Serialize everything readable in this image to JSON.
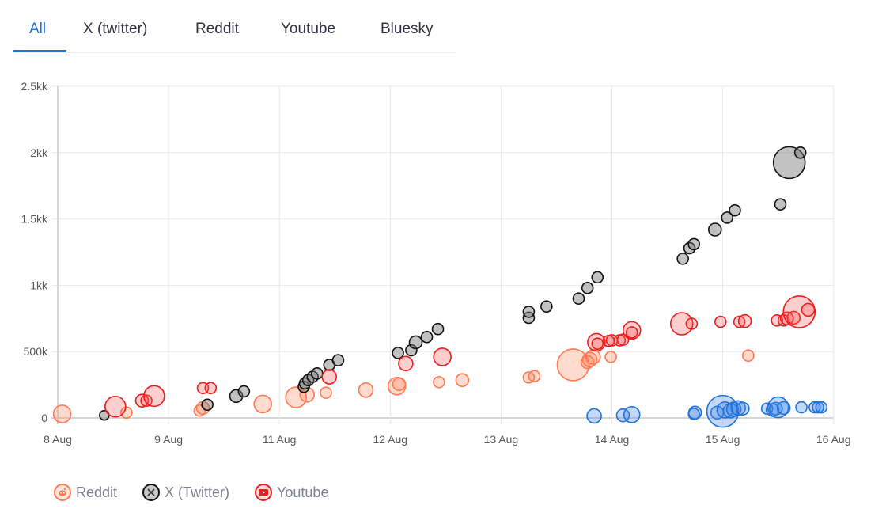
{
  "tabs": [
    {
      "label": "All",
      "active": true
    },
    {
      "label": "X (twitter)",
      "active": false
    },
    {
      "label": "Reddit",
      "active": false
    },
    {
      "label": "Youtube",
      "active": false
    },
    {
      "label": "Bluesky",
      "active": false
    }
  ],
  "legend": [
    {
      "label": "Reddit",
      "icon": "reddit-icon",
      "color": "#ff7a50"
    },
    {
      "label": "X (Twitter)",
      "icon": "x-icon",
      "color": "#111111"
    },
    {
      "label": "Youtube",
      "icon": "youtube-icon",
      "color": "#ee1c1c"
    }
  ],
  "chart_data": {
    "type": "scatter",
    "subtype": "bubble",
    "title": "",
    "xlabel": "",
    "ylabel": "",
    "x_ticks": [
      "8 Aug",
      "9 Aug",
      "11 Aug",
      "12 Aug",
      "13 Aug",
      "14 Aug",
      "15 Aug",
      "16 Aug"
    ],
    "y_ticks": [
      "0",
      "500k",
      "1kk",
      "1.5kk",
      "2kk",
      "2.5kk"
    ],
    "ylim": [
      0,
      2500000
    ],
    "grid": true,
    "legend_position": "bottom-left",
    "series": [
      {
        "name": "Reddit",
        "color": "#ff7a50",
        "fill": "rgba(255,122,80,0.28)",
        "points": [
          {
            "x": 0.04,
            "y": 30000,
            "r": 11
          },
          {
            "x": 0.62,
            "y": 40000,
            "r": 7
          },
          {
            "x": 1.28,
            "y": 55000,
            "r": 7
          },
          {
            "x": 1.31,
            "y": 75000,
            "r": 8
          },
          {
            "x": 1.85,
            "y": 105000,
            "r": 11
          },
          {
            "x": 2.15,
            "y": 155000,
            "r": 13
          },
          {
            "x": 2.25,
            "y": 175000,
            "r": 9
          },
          {
            "x": 2.42,
            "y": 190000,
            "r": 7
          },
          {
            "x": 2.78,
            "y": 210000,
            "r": 9
          },
          {
            "x": 3.06,
            "y": 240000,
            "r": 11
          },
          {
            "x": 3.08,
            "y": 255000,
            "r": 8
          },
          {
            "x": 3.44,
            "y": 270000,
            "r": 7
          },
          {
            "x": 3.65,
            "y": 285000,
            "r": 8
          },
          {
            "x": 4.25,
            "y": 305000,
            "r": 7
          },
          {
            "x": 4.3,
            "y": 315000,
            "r": 7
          },
          {
            "x": 4.65,
            "y": 400000,
            "r": 20
          },
          {
            "x": 4.78,
            "y": 420000,
            "r": 8
          },
          {
            "x": 4.8,
            "y": 440000,
            "r": 9
          },
          {
            "x": 4.83,
            "y": 460000,
            "r": 9
          },
          {
            "x": 4.99,
            "y": 460000,
            "r": 7
          },
          {
            "x": 6.23,
            "y": 470000,
            "r": 7
          }
        ]
      },
      {
        "name": "X (Twitter)",
        "color": "#111111",
        "fill": "rgba(120,120,120,0.45)",
        "points": [
          {
            "x": 0.42,
            "y": 20000,
            "r": 6
          },
          {
            "x": 1.35,
            "y": 100000,
            "r": 7
          },
          {
            "x": 1.61,
            "y": 165000,
            "r": 8
          },
          {
            "x": 1.68,
            "y": 200000,
            "r": 7
          },
          {
            "x": 2.22,
            "y": 235000,
            "r": 7
          },
          {
            "x": 2.23,
            "y": 260000,
            "r": 7
          },
          {
            "x": 2.26,
            "y": 285000,
            "r": 7
          },
          {
            "x": 2.3,
            "y": 310000,
            "r": 7
          },
          {
            "x": 2.34,
            "y": 335000,
            "r": 7
          },
          {
            "x": 2.45,
            "y": 400000,
            "r": 7
          },
          {
            "x": 2.53,
            "y": 435000,
            "r": 7
          },
          {
            "x": 3.07,
            "y": 490000,
            "r": 7
          },
          {
            "x": 3.19,
            "y": 510000,
            "r": 7
          },
          {
            "x": 3.23,
            "y": 570000,
            "r": 8
          },
          {
            "x": 3.33,
            "y": 610000,
            "r": 7
          },
          {
            "x": 3.43,
            "y": 670000,
            "r": 7
          },
          {
            "x": 4.25,
            "y": 755000,
            "r": 7
          },
          {
            "x": 4.25,
            "y": 800000,
            "r": 7
          },
          {
            "x": 4.41,
            "y": 840000,
            "r": 7
          },
          {
            "x": 4.7,
            "y": 900000,
            "r": 7
          },
          {
            "x": 4.78,
            "y": 980000,
            "r": 7
          },
          {
            "x": 4.87,
            "y": 1060000,
            "r": 7
          },
          {
            "x": 5.64,
            "y": 1200000,
            "r": 7
          },
          {
            "x": 5.7,
            "y": 1280000,
            "r": 7
          },
          {
            "x": 5.74,
            "y": 1310000,
            "r": 7
          },
          {
            "x": 5.93,
            "y": 1420000,
            "r": 8
          },
          {
            "x": 6.04,
            "y": 1510000,
            "r": 7
          },
          {
            "x": 6.11,
            "y": 1565000,
            "r": 7
          },
          {
            "x": 6.52,
            "y": 1610000,
            "r": 7
          },
          {
            "x": 6.6,
            "y": 1925000,
            "r": 20
          },
          {
            "x": 6.7,
            "y": 2000000,
            "r": 7
          }
        ]
      },
      {
        "name": "Youtube",
        "color": "#ee1c1c",
        "fill": "rgba(255,80,80,0.28)",
        "points": [
          {
            "x": 0.52,
            "y": 85000,
            "r": 13
          },
          {
            "x": 0.76,
            "y": 130000,
            "r": 8
          },
          {
            "x": 0.8,
            "y": 130000,
            "r": 7
          },
          {
            "x": 0.87,
            "y": 165000,
            "r": 13
          },
          {
            "x": 1.31,
            "y": 225000,
            "r": 7
          },
          {
            "x": 1.38,
            "y": 225000,
            "r": 7
          },
          {
            "x": 2.45,
            "y": 310000,
            "r": 9
          },
          {
            "x": 3.14,
            "y": 410000,
            "r": 9
          },
          {
            "x": 3.47,
            "y": 460000,
            "r": 11
          },
          {
            "x": 4.86,
            "y": 570000,
            "r": 11
          },
          {
            "x": 4.87,
            "y": 560000,
            "r": 7
          },
          {
            "x": 4.97,
            "y": 580000,
            "r": 7
          },
          {
            "x": 5.0,
            "y": 585000,
            "r": 7
          },
          {
            "x": 5.07,
            "y": 585000,
            "r": 7
          },
          {
            "x": 5.1,
            "y": 590000,
            "r": 7
          },
          {
            "x": 5.18,
            "y": 660000,
            "r": 11
          },
          {
            "x": 5.18,
            "y": 645000,
            "r": 7
          },
          {
            "x": 5.63,
            "y": 710000,
            "r": 14
          },
          {
            "x": 5.72,
            "y": 710000,
            "r": 7
          },
          {
            "x": 5.98,
            "y": 725000,
            "r": 7
          },
          {
            "x": 6.15,
            "y": 725000,
            "r": 7
          },
          {
            "x": 6.2,
            "y": 730000,
            "r": 8
          },
          {
            "x": 6.49,
            "y": 735000,
            "r": 7
          },
          {
            "x": 6.55,
            "y": 735000,
            "r": 7
          },
          {
            "x": 6.58,
            "y": 750000,
            "r": 8
          },
          {
            "x": 6.64,
            "y": 755000,
            "r": 8
          },
          {
            "x": 6.69,
            "y": 800000,
            "r": 20
          },
          {
            "x": 6.77,
            "y": 815000,
            "r": 8
          }
        ]
      },
      {
        "name": "Bluesky",
        "color": "#1f73d8",
        "fill": "rgba(60,130,230,0.30)",
        "points": [
          {
            "x": 4.84,
            "y": 15000,
            "r": 9
          },
          {
            "x": 5.1,
            "y": 20000,
            "r": 8
          },
          {
            "x": 5.18,
            "y": 25000,
            "r": 10
          },
          {
            "x": 5.74,
            "y": 30000,
            "r": 7
          },
          {
            "x": 5.75,
            "y": 40000,
            "r": 8
          },
          {
            "x": 5.95,
            "y": 40000,
            "r": 8
          },
          {
            "x": 6.0,
            "y": 50000,
            "r": 20
          },
          {
            "x": 6.02,
            "y": 60000,
            "r": 10
          },
          {
            "x": 6.07,
            "y": 55000,
            "r": 9
          },
          {
            "x": 6.1,
            "y": 65000,
            "r": 9
          },
          {
            "x": 6.14,
            "y": 75000,
            "r": 9
          },
          {
            "x": 6.18,
            "y": 70000,
            "r": 8
          },
          {
            "x": 6.4,
            "y": 70000,
            "r": 7
          },
          {
            "x": 6.45,
            "y": 60000,
            "r": 8
          },
          {
            "x": 6.48,
            "y": 70000,
            "r": 8
          },
          {
            "x": 6.5,
            "y": 80000,
            "r": 13
          },
          {
            "x": 6.55,
            "y": 75000,
            "r": 8
          },
          {
            "x": 6.71,
            "y": 80000,
            "r": 7
          },
          {
            "x": 6.83,
            "y": 80000,
            "r": 7
          },
          {
            "x": 6.86,
            "y": 80000,
            "r": 7
          },
          {
            "x": 6.89,
            "y": 80000,
            "r": 7
          }
        ]
      }
    ]
  }
}
